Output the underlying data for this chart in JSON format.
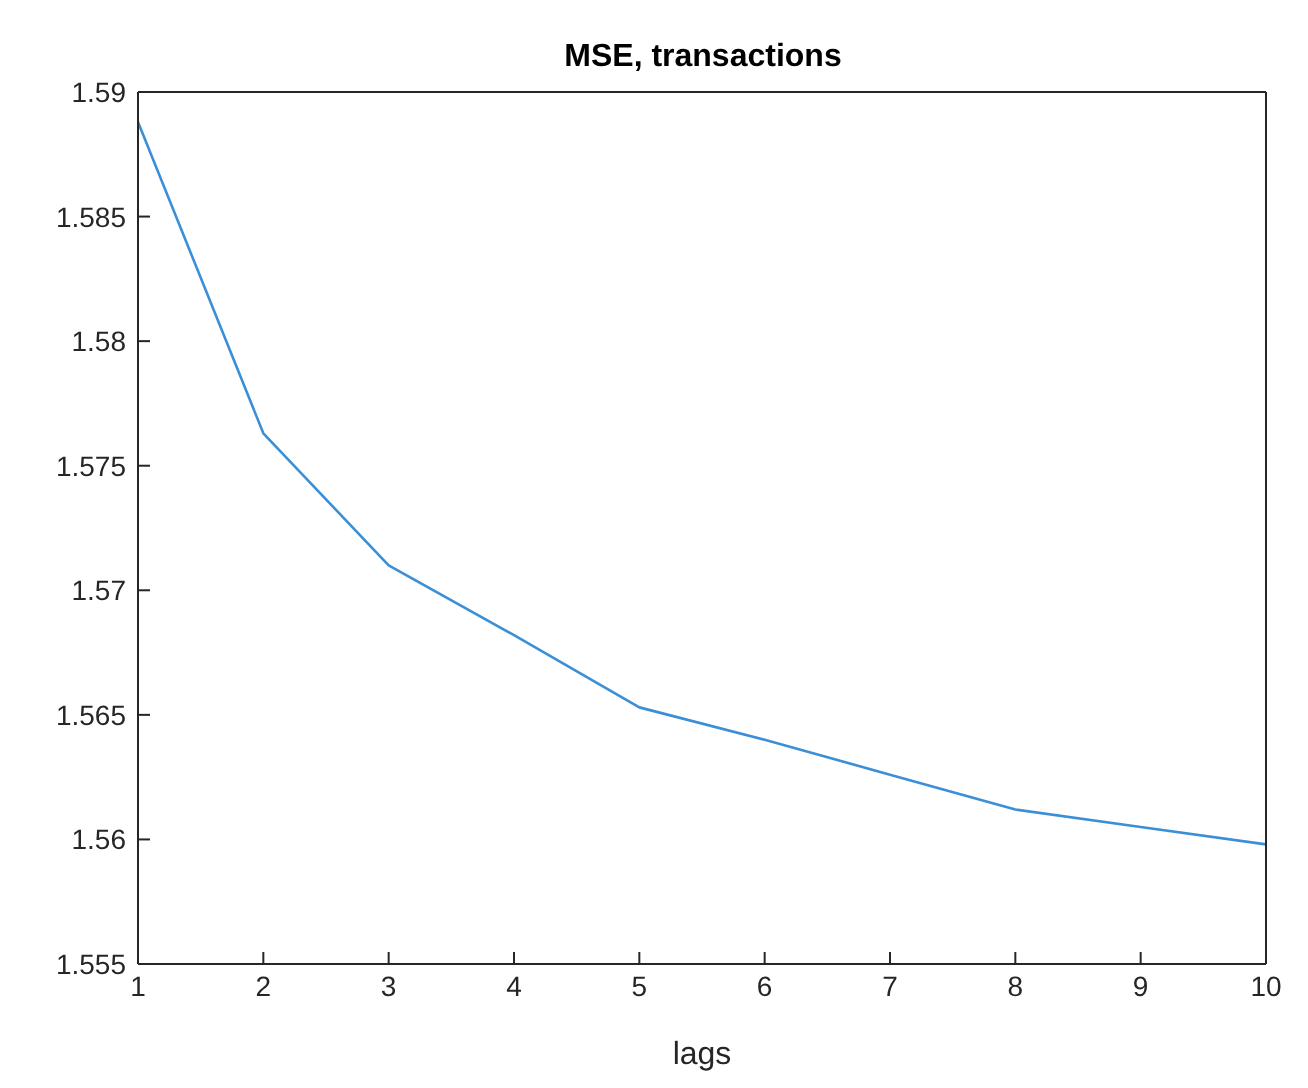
{
  "chart_data": {
    "type": "line",
    "title": "MSE, transactions",
    "xlabel": "lags",
    "x": [
      1,
      2,
      3,
      4,
      5,
      6,
      7,
      8,
      9,
      10
    ],
    "series": [
      {
        "color": "#3a8fd6",
        "values": [
          1.5888,
          1.5763,
          1.571,
          1.5682,
          1.5653,
          1.564,
          1.5626,
          1.5612,
          1.5605,
          1.5598
        ]
      }
    ],
    "xlim": [
      1,
      10
    ],
    "xticks": [
      1,
      2,
      3,
      4,
      5,
      6,
      7,
      8,
      9,
      10
    ],
    "ylim": [
      1.555,
      1.59
    ],
    "yticks": [
      1.555,
      1.56,
      1.565,
      1.57,
      1.575,
      1.58,
      1.585,
      1.59
    ],
    "grid": false,
    "marker": "none",
    "line_style": "solid"
  }
}
